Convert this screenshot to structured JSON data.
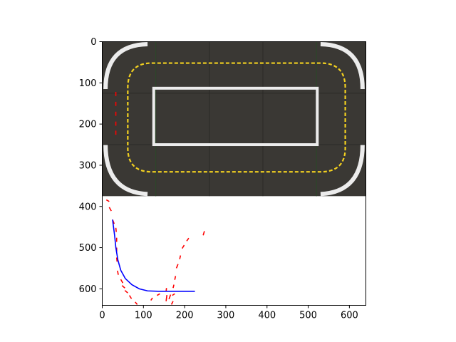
{
  "chart_data": {
    "type": "scatter",
    "title": "",
    "xlabel": "",
    "ylabel": "",
    "xlim": [
      0,
      640
    ],
    "ylim": [
      640,
      0
    ],
    "y_inverted": true,
    "grid": false,
    "x_ticks": [
      "0",
      "100",
      "200",
      "300",
      "400",
      "500",
      "600"
    ],
    "y_ticks": [
      "0",
      "100",
      "200",
      "300",
      "400",
      "500",
      "600"
    ],
    "background_image": {
      "description": "top-down track mosaic, dark asphalt with yellow dashed loop and white inner rectangle",
      "x_range": [
        0,
        640
      ],
      "y_range": [
        0,
        375
      ],
      "colors": {
        "asphalt": "#3a3834",
        "dash": "#f2d020",
        "line": "#ececec",
        "seam": "#2e4a2a"
      }
    },
    "series": [
      {
        "type": "segments",
        "color": "#ff0000",
        "segments": [
          [
            [
              33,
              122
            ],
            [
              33,
              132
            ]
          ],
          [
            [
              33,
              146
            ],
            [
              33,
              156
            ]
          ],
          [
            [
              33,
              170
            ],
            [
              33,
              180
            ]
          ],
          [
            [
              33,
              194
            ],
            [
              33,
              204
            ]
          ],
          [
            [
              33,
              216
            ],
            [
              33,
              226
            ]
          ],
          [
            [
              10,
              384
            ],
            [
              17,
              388
            ]
          ],
          [
            [
              17,
              402
            ],
            [
              22,
              411
            ]
          ],
          [
            [
              25,
              432
            ],
            [
              29,
              442
            ]
          ],
          [
            [
              33,
              452
            ],
            [
              34,
              462
            ]
          ],
          [
            [
              35,
              476
            ],
            [
              35,
              486
            ]
          ],
          [
            [
              35,
              500
            ],
            [
              35,
              510
            ]
          ],
          [
            [
              35,
              524
            ],
            [
              36,
              534
            ]
          ],
          [
            [
              37,
              556
            ],
            [
              39,
              566
            ]
          ],
          [
            [
              45,
              577
            ],
            [
              50,
              586
            ]
          ],
          [
            [
              48,
              592
            ],
            [
              55,
              598
            ]
          ],
          [
            [
              55,
              604
            ],
            [
              62,
              610
            ]
          ],
          [
            [
              66,
              616
            ],
            [
              71,
              624
            ]
          ],
          [
            [
              80,
              632
            ],
            [
              85,
              638
            ]
          ],
          [
            [
              118,
              628
            ],
            [
              122,
              622
            ]
          ],
          [
            [
              133,
              616
            ],
            [
              140,
              612
            ]
          ],
          [
            [
              155,
              606
            ],
            [
              156,
              598
            ]
          ],
          [
            [
              157,
              615
            ],
            [
              155,
              630
            ]
          ],
          [
            [
              162,
              625
            ],
            [
              166,
              614
            ]
          ],
          [
            [
              170,
              616
            ],
            [
              176,
              612
            ]
          ],
          [
            [
              168,
              638
            ],
            [
              172,
              630
            ]
          ],
          [
            [
              172,
              598
            ],
            [
              174,
              590
            ]
          ],
          [
            [
              176,
              578
            ],
            [
              178,
              569
            ]
          ],
          [
            [
              180,
              550
            ],
            [
              184,
              540
            ]
          ],
          [
            [
              188,
              528
            ],
            [
              190,
              519
            ]
          ],
          [
            [
              194,
              502
            ],
            [
              199,
              494
            ]
          ],
          [
            [
              205,
              484
            ],
            [
              210,
              477
            ]
          ],
          [
            [
              245,
              470
            ],
            [
              248,
              460
            ]
          ]
        ]
      },
      {
        "type": "line",
        "color": "#0000ff",
        "points": [
          [
            25,
            432
          ],
          [
            30,
            470
          ],
          [
            33,
            500
          ],
          [
            38,
            530
          ],
          [
            45,
            555
          ],
          [
            56,
            575
          ],
          [
            72,
            590
          ],
          [
            90,
            600
          ],
          [
            110,
            605
          ],
          [
            135,
            606
          ],
          [
            170,
            606
          ],
          [
            200,
            606
          ],
          [
            225,
            606
          ]
        ]
      }
    ]
  }
}
